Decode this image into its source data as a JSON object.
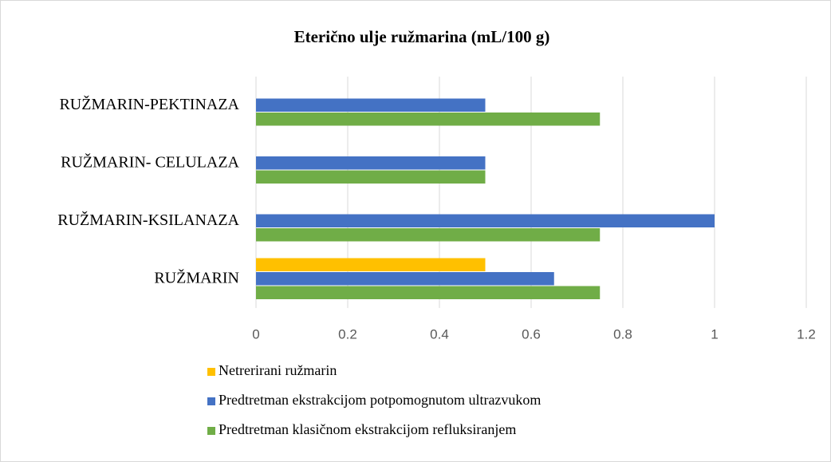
{
  "chart_data": {
    "type": "barh",
    "title": "Eterično ulje ružmarina (mL/100 g)",
    "categories": [
      "RUŽMARIN",
      "RUŽMARIN-KSILANAZA",
      "RUŽMARIN- CELULAZA",
      "RUŽMARIN-PEKTINAZA"
    ],
    "series": [
      {
        "name": "Netrerirani ružmarin",
        "color": "#ffc000",
        "values": [
          0.5,
          null,
          null,
          null
        ]
      },
      {
        "name": "Predtretman ekstrakcijom potpomognutom ultrazvukom",
        "color": "#4472c4",
        "values": [
          0.65,
          1,
          0.5,
          0.5
        ]
      },
      {
        "name": "Predtretman klasičnom ekstrakcijom refluksiranjem",
        "color": "#70ad47",
        "values": [
          0.75,
          0.75,
          0.5,
          0.75
        ]
      }
    ],
    "xlim": [
      0,
      1.2
    ],
    "xticks": [
      0,
      0.2,
      0.4,
      0.6,
      0.8,
      1,
      1.2
    ],
    "grid": true,
    "legend": "bottom"
  }
}
